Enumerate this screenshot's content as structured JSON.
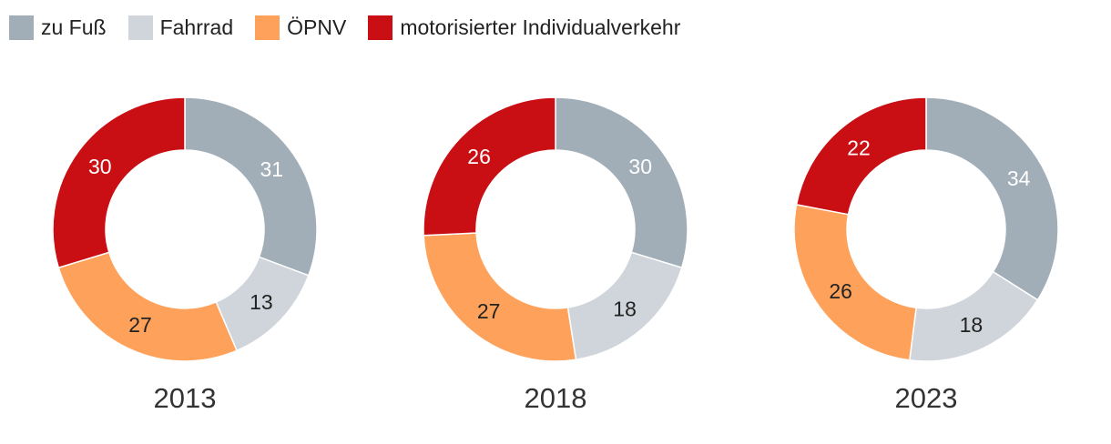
{
  "legend": [
    {
      "label": "zu Fuß",
      "color": "#a1aeb8"
    },
    {
      "label": "Fahrrad",
      "color": "#d0d5dc"
    },
    {
      "label": "ÖPNV",
      "color": "#fea25b"
    },
    {
      "label": "motorisierter Individualverkehr",
      "color": "#c90e14"
    }
  ],
  "chart_data": [
    {
      "type": "pie",
      "title": "2013",
      "categories": [
        "zu Fuß",
        "Fahrrad",
        "ÖPNV",
        "motorisierter Individualverkehr"
      ],
      "values": [
        31,
        13,
        27,
        30
      ],
      "label_colors": [
        "#ffffff",
        "#222222",
        "#222222",
        "#ffffff"
      ]
    },
    {
      "type": "pie",
      "title": "2018",
      "categories": [
        "zu Fuß",
        "Fahrrad",
        "ÖPNV",
        "motorisierter Individualverkehr"
      ],
      "values": [
        30,
        18,
        27,
        26
      ],
      "label_colors": [
        "#ffffff",
        "#222222",
        "#222222",
        "#ffffff"
      ]
    },
    {
      "type": "pie",
      "title": "2023",
      "categories": [
        "zu Fuß",
        "Fahrrad",
        "ÖPNV",
        "motorisierter Individualverkehr"
      ],
      "values": [
        34,
        18,
        26,
        22
      ],
      "label_colors": [
        "#ffffff",
        "#222222",
        "#222222",
        "#ffffff"
      ]
    }
  ]
}
